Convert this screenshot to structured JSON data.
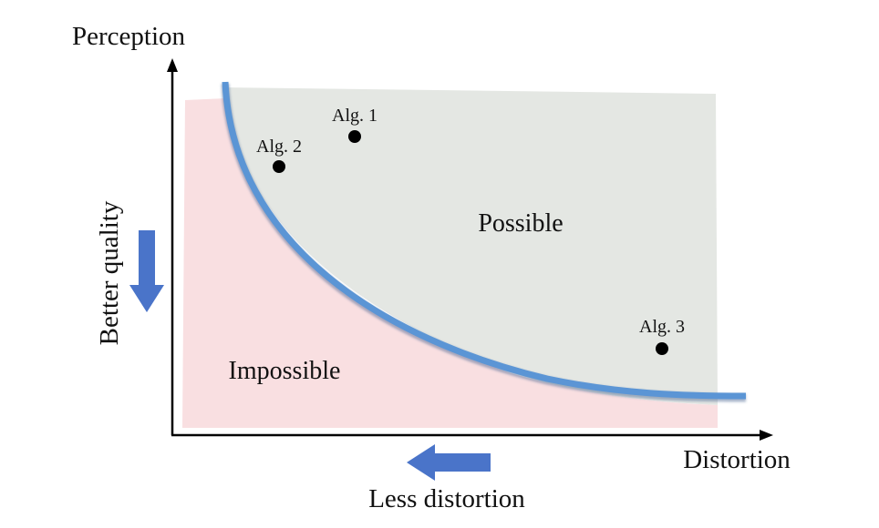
{
  "axes": {
    "y_label": "Perception",
    "x_label": "Distortion"
  },
  "annotations": {
    "better_quality": "Better quality",
    "less_distortion": "Less distortion"
  },
  "regions": {
    "possible": "Possible",
    "impossible": "Impossible"
  },
  "points": [
    {
      "label": "Alg. 1"
    },
    {
      "label": "Alg. 2"
    },
    {
      "label": "Alg. 3"
    }
  ],
  "colors": {
    "possible_fill": "#e4e7e3",
    "impossible_fill": "#f9dfe1",
    "curve": "#5b95d5",
    "arrow": "#4a74c9",
    "axis": "#000000",
    "point": "#000000"
  }
}
